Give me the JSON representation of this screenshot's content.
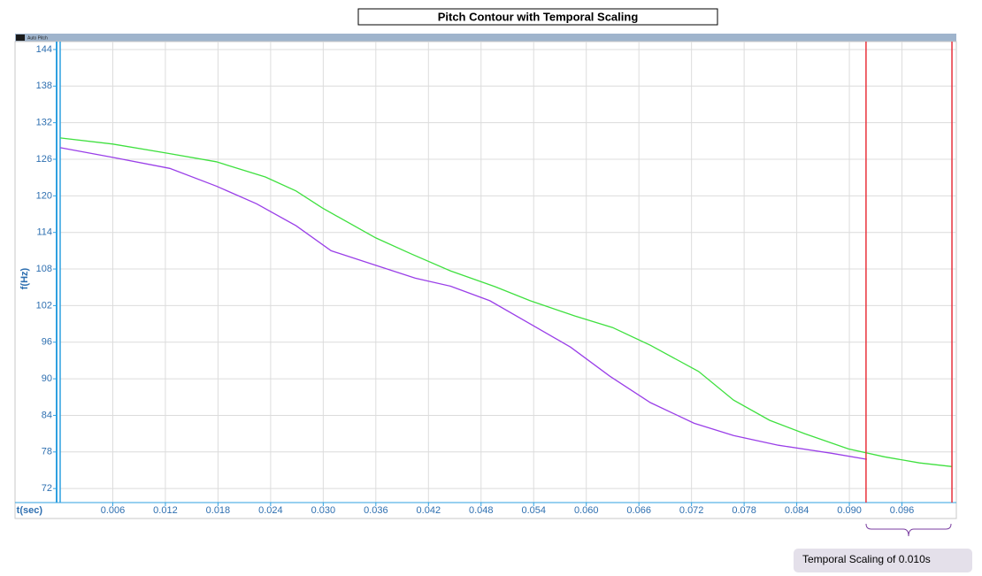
{
  "chart_data": {
    "type": "line",
    "title": "Pitch Contour with Temporal Scaling",
    "window_label": "Auto Pitch",
    "xlabel": "t(sec)",
    "ylabel": "f(Hz)",
    "xlim": [
      0,
      0.1022
    ],
    "ylim": [
      69.7,
      145.3
    ],
    "xticks": [
      0.006,
      0.012,
      0.018,
      0.024,
      {
        "value": 0.03,
        "label": "0.030"
      },
      0.036,
      0.042,
      0.048,
      0.054,
      {
        "value": 0.06,
        "label": "0.060"
      },
      0.066,
      0.072,
      0.078,
      0.084,
      {
        "value": 0.09,
        "label": "0.090"
      },
      0.096
    ],
    "yticks": [
      72,
      78,
      84,
      90,
      96,
      102,
      108,
      114,
      120,
      126,
      132,
      138,
      144
    ],
    "grid": true,
    "series": [
      {
        "color": "#3fe03f",
        "x": [
          0,
          0.006,
          0.0122,
          0.0178,
          0.0234,
          0.0269,
          0.0299,
          0.036,
          0.04,
          0.0445,
          0.0496,
          0.0536,
          0.0587,
          0.063,
          0.0673,
          0.0728,
          0.0768,
          0.0809,
          0.0849,
          0.0899,
          0.094,
          0.098,
          0.1017
        ],
        "values": [
          129.5,
          128.5,
          127.0,
          125.6,
          123.1,
          120.8,
          118.0,
          113.1,
          110.5,
          107.7,
          105.1,
          102.8,
          100.3,
          98.4,
          95.5,
          91.2,
          86.5,
          83.2,
          81.0,
          78.5,
          77.2,
          76.2,
          75.6
        ]
      },
      {
        "color": "#9a3fe8",
        "x": [
          0,
          0.006,
          0.0125,
          0.0178,
          0.0224,
          0.0269,
          0.0309,
          0.036,
          0.0405,
          0.0445,
          0.049,
          0.0536,
          0.0582,
          0.0627,
          0.0673,
          0.0723,
          0.0768,
          0.0819,
          0.0879,
          0.092
        ],
        "values": [
          127.9,
          126.3,
          124.5,
          121.6,
          118.7,
          115.1,
          111.0,
          108.6,
          106.5,
          105.2,
          102.8,
          99.0,
          95.2,
          90.4,
          86.1,
          82.7,
          80.7,
          79.1,
          77.8,
          76.8
        ]
      }
    ],
    "markers": [
      {
        "x": 0.0919,
        "color": "#e8323c"
      },
      {
        "x": 0.1017,
        "color": "#e8323c"
      }
    ],
    "annotation": "Temporal Scaling of 0.010s"
  }
}
